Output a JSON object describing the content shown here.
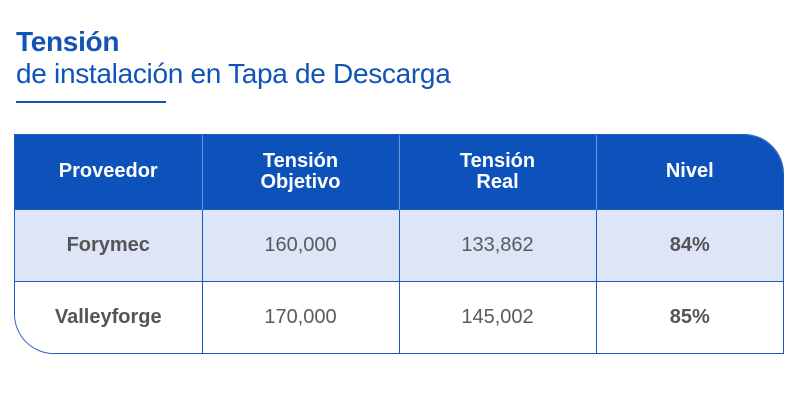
{
  "title": {
    "main": "Tensión",
    "sub": "de instalación en Tapa de Descarga"
  },
  "table": {
    "headers": [
      "Proveedor",
      "Tensión\nObjetivo",
      "Tensión\nReal",
      "Nivel"
    ],
    "header_lines": [
      [
        "Proveedor"
      ],
      [
        "Tensión",
        "Objetivo"
      ],
      [
        "Tensión",
        "Real"
      ],
      [
        "Nivel"
      ]
    ],
    "rows": [
      [
        "Forymec",
        "160,000",
        "133,862",
        "84%"
      ],
      [
        "Valleyforge",
        "170,000",
        "145,002",
        "85%"
      ]
    ]
  },
  "colors": {
    "accent": "#1254b5",
    "header_bg": "#0d52ba",
    "row_alt_bg": "#dde5f6",
    "text": "#5a5a5a"
  }
}
